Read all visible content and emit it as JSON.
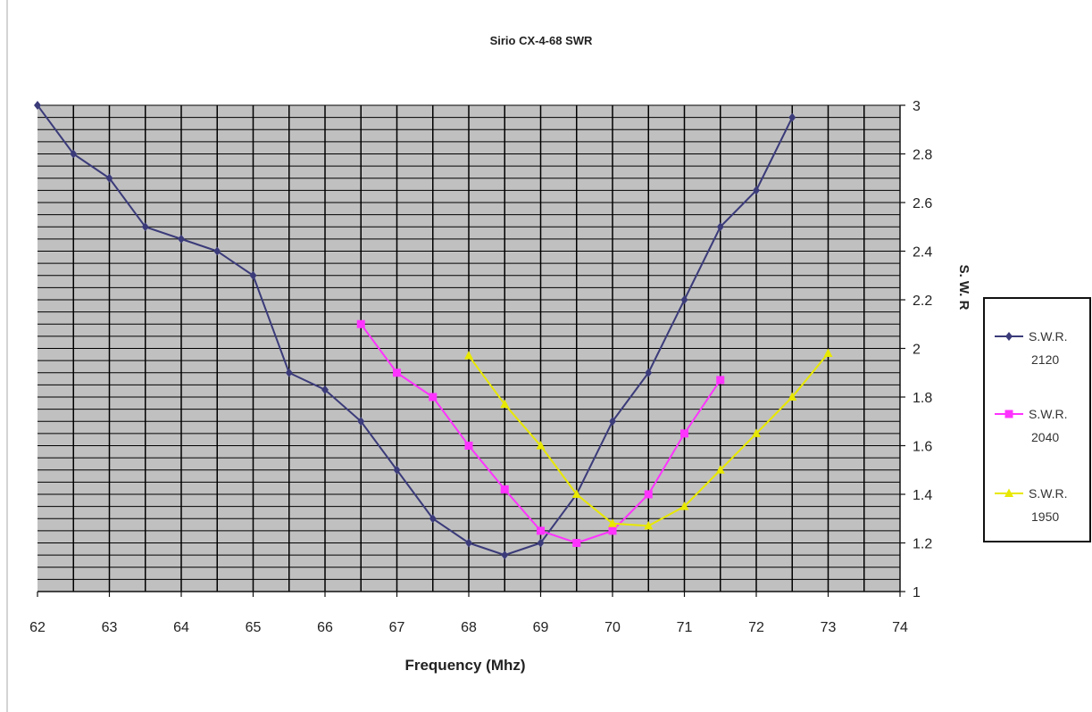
{
  "chart_data": {
    "type": "line",
    "title": "Sirio CX-4-68 SWR",
    "xlabel": "Frequency (Mhz)",
    "ylabel": "S. W. R",
    "xlim": [
      62,
      74
    ],
    "ylim": [
      1,
      3
    ],
    "xticks": [
      "62",
      "63",
      "64",
      "65",
      "66",
      "67",
      "68",
      "69",
      "70",
      "71",
      "72",
      "73",
      "74"
    ],
    "yticks": [
      "1",
      "1.2",
      "1.4",
      "1.6",
      "1.8",
      "2",
      "2.2",
      "2.4",
      "2.6",
      "2.8",
      "3"
    ],
    "grid": true,
    "plot_background": "#c0c0c0",
    "legend_position": "right",
    "series": [
      {
        "name": [
          "S.W.R.",
          "2120"
        ],
        "color": "#3b3b7a",
        "marker": "diamond",
        "x": [
          62,
          62.5,
          63,
          63.5,
          64,
          64.5,
          65,
          65.5,
          66,
          66.5,
          67,
          67.5,
          68,
          68.5,
          69,
          69.5,
          70,
          70.5,
          71,
          71.5,
          72,
          72.5
        ],
        "y": [
          3.0,
          2.8,
          2.7,
          2.5,
          2.45,
          2.4,
          2.3,
          1.9,
          1.83,
          1.7,
          1.5,
          1.3,
          1.2,
          1.15,
          1.2,
          1.4,
          1.7,
          1.9,
          2.2,
          2.5,
          2.65,
          2.95
        ]
      },
      {
        "name": [
          "S.W.R.",
          "2040"
        ],
        "color": "#ff33ff",
        "marker": "square",
        "x": [
          66.5,
          67,
          67.5,
          68,
          68.5,
          69,
          69.5,
          70,
          70.5,
          71,
          71.5
        ],
        "y": [
          2.1,
          1.9,
          1.8,
          1.6,
          1.42,
          1.25,
          1.2,
          1.25,
          1.4,
          1.65,
          1.87
        ]
      },
      {
        "name": [
          "S.W.R.",
          "1950"
        ],
        "color": "#e8e800",
        "marker": "triangle",
        "x": [
          68,
          68.5,
          69,
          69.5,
          70,
          70.5,
          71,
          71.5,
          72,
          72.5,
          73
        ],
        "y": [
          1.97,
          1.77,
          1.6,
          1.4,
          1.28,
          1.27,
          1.35,
          1.5,
          1.65,
          1.8,
          1.98
        ]
      }
    ]
  }
}
